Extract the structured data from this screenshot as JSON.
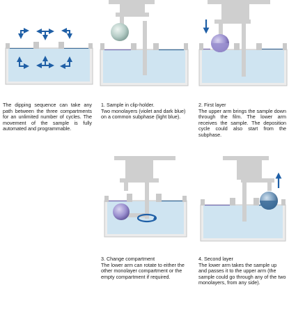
{
  "colors": {
    "trough": "#c9c9c9",
    "trough_inner": "#ececec",
    "subphase": "#cfe4f1",
    "film_violet": "#7b6fb3",
    "film_blue": "#3d6d9a",
    "arrow_blue": "#1f5fa6",
    "arm_gray": "#cfcfcf",
    "sample_gray": "#9fb9b3"
  },
  "panels": {
    "intro": {
      "text": "The dipping sequence can take any path between the three compartments for an unlimited number of cycles. The movement of the sample is fully automated and programmable."
    },
    "step1": {
      "title": "1.  Sample in clip-holder.",
      "body": "Two monolayers (violet and dark blue) on a common subphase (light blue)."
    },
    "step2": {
      "title": "2. First layer",
      "body": "The upper arm brings the sample down through the film. The lower arm receives the sample. The deposition cycle could also start from the subphase."
    },
    "step3": {
      "title": "3. Change compartment",
      "body": "The lower arm can rotate to either the other monolayer compartment or the empty compartment if required."
    },
    "step4": {
      "title": "4. Second layer",
      "body": "The lower arm takes the sample up and passes it to the upper arm (the sample could go through any of the two monolayers, from any side)."
    }
  }
}
